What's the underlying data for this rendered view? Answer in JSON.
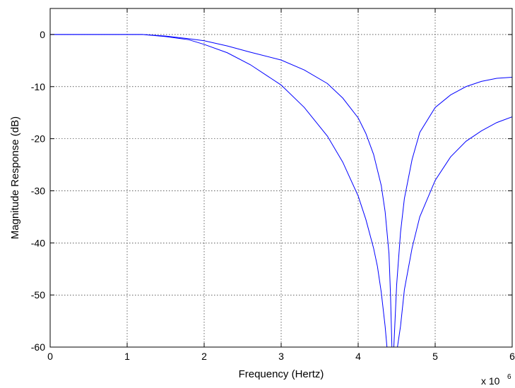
{
  "chart_data": {
    "type": "line",
    "title": "",
    "xlabel": "Frequency (Hertz)",
    "ylabel": "Magnitude Response (dB)",
    "x_exponent_label": "x 10",
    "x_exponent_power": "6",
    "xlim": [
      0,
      6
    ],
    "ylim": [
      -60,
      5
    ],
    "x_ticks": [
      "0",
      "1",
      "2",
      "3",
      "4",
      "5",
      "6"
    ],
    "y_ticks": [
      "0",
      "-10",
      "-20",
      "-30",
      "-40",
      "-50",
      "-60"
    ],
    "grid": true,
    "line_color": "#0000ff",
    "series": [
      {
        "x": [
          0,
          0.5,
          1.0,
          1.2,
          1.5,
          1.8,
          2.0,
          2.3,
          2.6,
          3.0,
          3.3,
          3.6,
          3.8,
          4.0,
          4.1,
          4.2,
          4.3,
          4.35,
          4.4,
          4.42,
          4.44,
          4.46,
          4.5,
          4.55,
          4.6,
          4.7,
          4.8,
          5.0,
          5.2,
          5.4,
          5.6,
          5.8,
          6.0
        ],
        "values": [
          0,
          0,
          0,
          0,
          -0.3,
          -0.8,
          -1.2,
          -2.2,
          -3.4,
          -4.9,
          -6.8,
          -9.4,
          -12.2,
          -16.0,
          -19.0,
          -23.0,
          -29.0,
          -34.0,
          -42.0,
          -50.0,
          -61.0,
          -61.0,
          -48.0,
          -38.0,
          -31.5,
          -24.0,
          -18.8,
          -14.0,
          -11.6,
          -10.0,
          -9.0,
          -8.4,
          -8.2
        ]
      },
      {
        "x": [
          0,
          0.5,
          1.0,
          1.2,
          1.5,
          1.8,
          2.0,
          2.3,
          2.6,
          3.0,
          3.3,
          3.6,
          3.8,
          4.0,
          4.1,
          4.2,
          4.25,
          4.3,
          4.35,
          4.38,
          4.4,
          4.45,
          4.5,
          4.55,
          4.6,
          4.7,
          4.8,
          5.0,
          5.2,
          5.4,
          5.6,
          5.8,
          6.0
        ],
        "values": [
          0,
          0,
          0,
          0,
          -0.4,
          -1.0,
          -1.9,
          -3.5,
          -5.8,
          -9.7,
          -14.0,
          -19.5,
          -24.5,
          -31.0,
          -35.5,
          -41.0,
          -44.5,
          -49.5,
          -56.0,
          -61.0,
          -61.0,
          -61.0,
          -61.0,
          -56.0,
          -49.0,
          -41.0,
          -35.0,
          -28.0,
          -23.5,
          -20.5,
          -18.5,
          -16.9,
          -15.8
        ]
      }
    ]
  }
}
